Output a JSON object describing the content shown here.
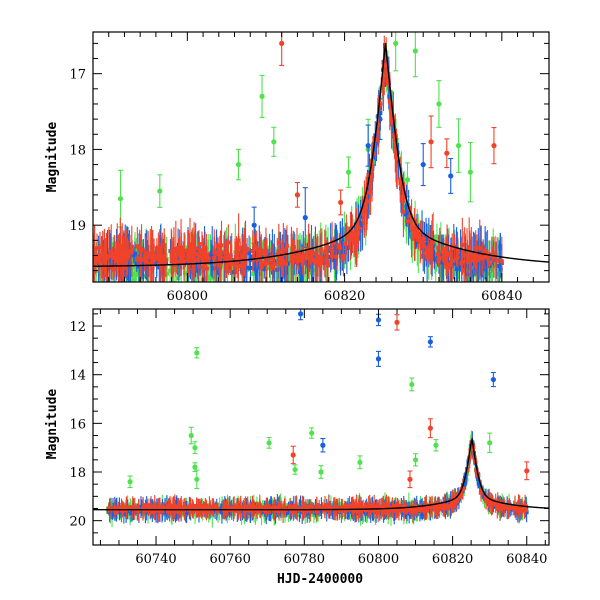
{
  "chart_data": [
    {
      "panel": "top",
      "type": "scatter",
      "xlim": [
        60788,
        60846
      ],
      "ylim": [
        19.75,
        16.45
      ],
      "y_inverted": true,
      "xticks_major": [
        60800,
        60820,
        60840
      ],
      "yticks_major": [
        17,
        18,
        19
      ],
      "xlabel": "",
      "ylabel": "Magnitude",
      "colors": {
        "green": "#4ee34e",
        "blue": "#1a5fe0",
        "red": "#f0432a",
        "model": "#000000"
      },
      "series": [
        {
          "color": "green",
          "baseline": 19.5,
          "scatter": 0.35,
          "start": 60788,
          "end": 60840,
          "outliers": [
            [
              60791.5,
              18.65
            ],
            [
              60796.5,
              18.55
            ],
            [
              60806.5,
              18.2
            ],
            [
              60809.5,
              17.3
            ],
            [
              60811.0,
              17.9
            ],
            [
              60820.5,
              18.3
            ],
            [
              60823.0,
              18.0
            ],
            [
              60826.5,
              16.6
            ],
            [
              60829.0,
              16.7
            ],
            [
              60832.0,
              17.4
            ],
            [
              60834.5,
              17.95
            ],
            [
              60828.0,
              18.4
            ],
            [
              60836.0,
              18.3
            ]
          ]
        },
        {
          "color": "blue",
          "baseline": 19.45,
          "scatter": 0.25,
          "start": 60788,
          "end": 60840,
          "outliers": [
            [
              60823.0,
              17.95
            ],
            [
              60824.5,
              17.6
            ],
            [
              60830.0,
              18.2
            ],
            [
              60833.5,
              18.35
            ],
            [
              60808.5,
              19.0
            ],
            [
              60815.0,
              18.9
            ]
          ]
        },
        {
          "color": "red",
          "baseline": 19.4,
          "scatter": 0.25,
          "start": 60788,
          "end": 60840,
          "outliers": [
            [
              60812.0,
              16.6
            ],
            [
              60831.0,
              17.9
            ],
            [
              60839.0,
              17.95
            ],
            [
              60833.0,
              18.05
            ],
            [
              60819.5,
              18.7
            ],
            [
              60814.0,
              18.6
            ]
          ]
        }
      ],
      "peak": {
        "t0": 60825.2,
        "peak_mag": 16.65,
        "base_mag": 19.55,
        "width": 0.9
      }
    },
    {
      "panel": "bottom",
      "type": "scatter",
      "xlim": [
        60723,
        60846
      ],
      "ylim": [
        21.0,
        11.3
      ],
      "y_inverted": true,
      "xticks_major": [
        60740,
        60760,
        60780,
        60800,
        60820,
        60840
      ],
      "yticks_major": [
        12,
        14,
        16,
        18,
        20
      ],
      "xlabel": "HJD-2400000",
      "ylabel": "Magnitude",
      "series": [
        {
          "color": "green",
          "baseline": 19.55,
          "scatter": 0.45,
          "start": 60727,
          "end": 60840,
          "outliers": [
            [
              60751.0,
              13.1
            ],
            [
              60749.5,
              16.5
            ],
            [
              60750.5,
              17.0
            ],
            [
              60750.5,
              17.8
            ],
            [
              60751.0,
              18.3
            ],
            [
              60770.5,
              16.8
            ],
            [
              60777.5,
              17.9
            ],
            [
              60782.0,
              16.4
            ],
            [
              60784.5,
              18.0
            ],
            [
              60809.0,
              14.4
            ],
            [
              60810.0,
              17.5
            ],
            [
              60815.5,
              16.9
            ],
            [
              60830.0,
              16.8
            ],
            [
              60733.0,
              18.4
            ],
            [
              60795.0,
              17.6
            ]
          ]
        },
        {
          "color": "blue",
          "baseline": 19.55,
          "scatter": 0.25,
          "start": 60727,
          "end": 60840,
          "outliers": [
            [
              60779.0,
              11.5
            ],
            [
              60800.0,
              11.75
            ],
            [
              60800.0,
              13.35
            ],
            [
              60814.0,
              12.65
            ],
            [
              60831.0,
              14.2
            ],
            [
              60785.0,
              16.9
            ]
          ]
        },
        {
          "color": "red",
          "baseline": 19.5,
          "scatter": 0.22,
          "start": 60727,
          "end": 60840,
          "outliers": [
            [
              60805.0,
              11.85
            ],
            [
              60814.0,
              16.2
            ],
            [
              60777.0,
              17.3
            ],
            [
              60840.0,
              17.95
            ],
            [
              60808.5,
              18.3
            ]
          ]
        }
      ],
      "peak": {
        "t0": 60825.2,
        "peak_mag": 16.65,
        "base_mag": 19.55,
        "width": 0.9
      }
    }
  ]
}
